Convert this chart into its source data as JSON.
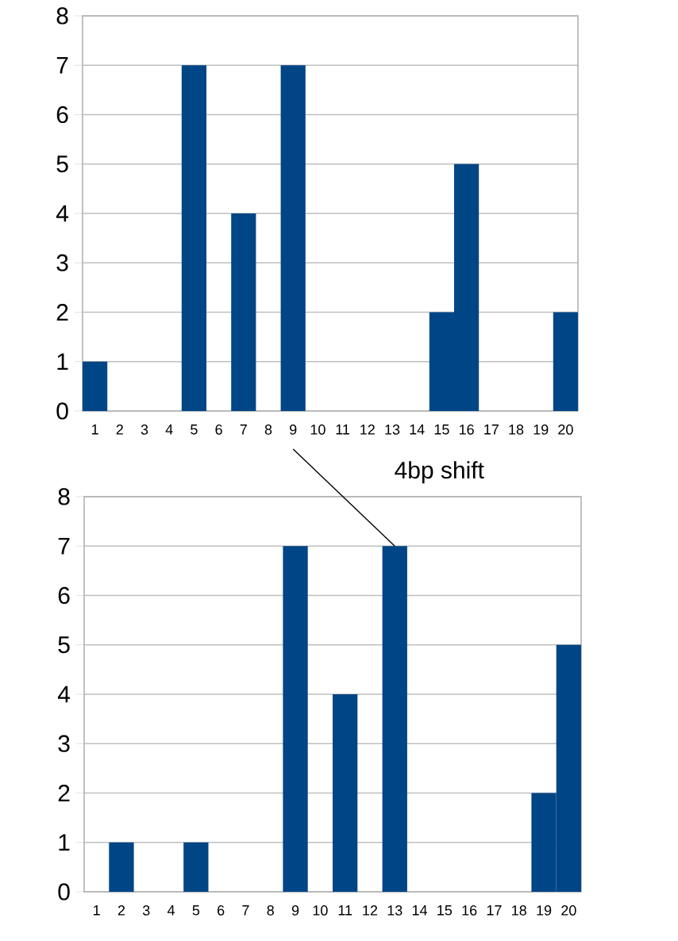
{
  "chart_data": [
    {
      "type": "bar",
      "categories": [
        "1",
        "2",
        "3",
        "4",
        "5",
        "6",
        "7",
        "8",
        "9",
        "10",
        "11",
        "12",
        "13",
        "14",
        "15",
        "16",
        "17",
        "18",
        "19",
        "20"
      ],
      "values": [
        1,
        0,
        0,
        0,
        7,
        0,
        4,
        0,
        7,
        0,
        0,
        0,
        0,
        0,
        2,
        5,
        0,
        0,
        0,
        2
      ],
      "color": "#004586",
      "ylim": [
        0,
        8
      ],
      "yticks": [
        0,
        1,
        2,
        3,
        4,
        5,
        6,
        7,
        8
      ],
      "grid": "y",
      "annotations": [
        "4bp shift"
      ]
    },
    {
      "type": "bar",
      "categories": [
        "1",
        "2",
        "3",
        "4",
        "5",
        "6",
        "7",
        "8",
        "9",
        "10",
        "11",
        "12",
        "13",
        "14",
        "15",
        "16",
        "17",
        "18",
        "19",
        "20"
      ],
      "values": [
        0,
        1,
        0,
        0,
        1,
        0,
        0,
        0,
        7,
        0,
        4,
        0,
        7,
        0,
        0,
        0,
        0,
        0,
        2,
        5
      ],
      "color": "#004586",
      "ylim": [
        0,
        8
      ],
      "yticks": [
        0,
        1,
        2,
        3,
        4,
        5,
        6,
        7,
        8
      ],
      "grid": "y"
    }
  ]
}
